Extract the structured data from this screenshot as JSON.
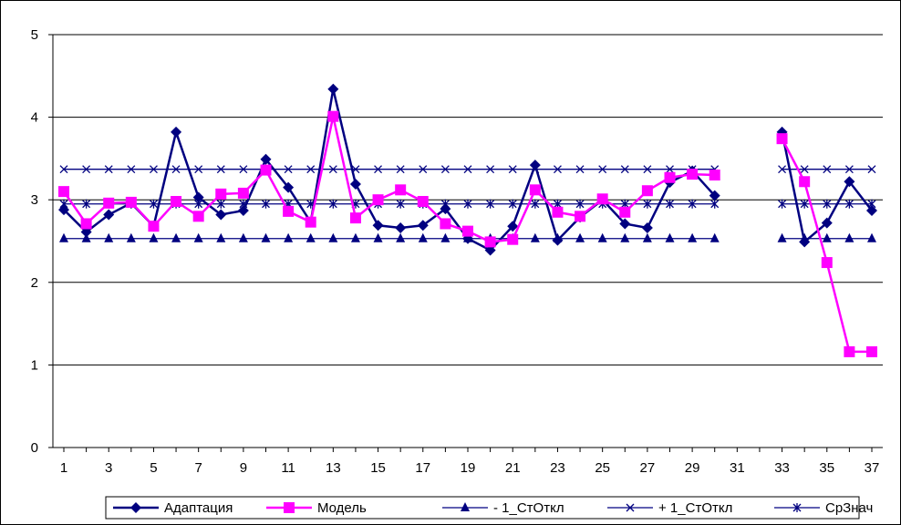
{
  "chart_data": {
    "type": "line",
    "title": "",
    "xlabel": "",
    "ylabel": "",
    "ylim": [
      0,
      5
    ],
    "yticks": [
      "0",
      "1",
      "2",
      "3",
      "4",
      "5"
    ],
    "xlim": [
      1,
      37
    ],
    "xticks": [
      "1",
      "3",
      "5",
      "7",
      "9",
      "11",
      "13",
      "15",
      "17",
      "19",
      "21",
      "23",
      "25",
      "27",
      "29",
      "31",
      "33",
      "35",
      "37"
    ],
    "grid": "horizontal",
    "legend_position": "bottom",
    "x": [
      1,
      2,
      3,
      4,
      5,
      6,
      7,
      8,
      9,
      10,
      11,
      12,
      13,
      14,
      15,
      16,
      17,
      18,
      19,
      20,
      21,
      22,
      23,
      24,
      25,
      26,
      27,
      28,
      29,
      30,
      31,
      32,
      33,
      34,
      35,
      36,
      37
    ],
    "series": [
      {
        "name": "Адаптация",
        "color": "#000080",
        "marker": "diamond",
        "values": [
          2.88,
          2.61,
          2.82,
          2.96,
          2.68,
          3.82,
          3.03,
          2.82,
          2.87,
          3.49,
          3.15,
          2.73,
          4.34,
          3.19,
          2.69,
          2.66,
          2.69,
          2.89,
          2.53,
          2.39,
          2.68,
          3.42,
          2.51,
          2.79,
          3.0,
          2.71,
          2.66,
          3.21,
          3.35,
          3.05,
          null,
          null,
          3.82,
          2.49,
          2.72,
          3.22,
          2.87
        ]
      },
      {
        "name": "Модель",
        "color": "#ff00ff",
        "marker": "square",
        "values": [
          3.1,
          2.71,
          2.96,
          2.97,
          2.68,
          2.98,
          2.8,
          3.07,
          3.08,
          3.36,
          2.86,
          2.73,
          4.01,
          2.78,
          3.0,
          3.12,
          2.98,
          2.71,
          2.62,
          2.49,
          2.52,
          3.12,
          2.85,
          2.8,
          3.01,
          2.85,
          3.11,
          3.27,
          3.31,
          3.3,
          null,
          null,
          3.74,
          3.22,
          2.24,
          1.16,
          1.16
        ]
      },
      {
        "name": "- 1_СтОткл",
        "color": "#000080",
        "marker": "triangle",
        "values": [
          2.53,
          2.53,
          2.53,
          2.53,
          2.53,
          2.53,
          2.53,
          2.53,
          2.53,
          2.53,
          2.53,
          2.53,
          2.53,
          2.53,
          2.53,
          2.53,
          2.53,
          2.53,
          2.53,
          2.53,
          2.53,
          2.53,
          2.53,
          2.53,
          2.53,
          2.53,
          2.53,
          2.53,
          2.53,
          2.53,
          null,
          null,
          2.53,
          2.53,
          2.53,
          2.53,
          2.53
        ]
      },
      {
        "name": "+ 1_СтОткл",
        "color": "#000080",
        "marker": "x",
        "values": [
          3.37,
          3.37,
          3.37,
          3.37,
          3.37,
          3.37,
          3.37,
          3.37,
          3.37,
          3.37,
          3.37,
          3.37,
          3.37,
          3.37,
          3.37,
          3.37,
          3.37,
          3.37,
          3.37,
          3.37,
          3.37,
          3.37,
          3.37,
          3.37,
          3.37,
          3.37,
          3.37,
          3.37,
          3.37,
          3.37,
          null,
          null,
          3.37,
          3.37,
          3.37,
          3.37,
          3.37
        ]
      },
      {
        "name": "СрЗнач",
        "color": "#000080",
        "marker": "star",
        "values": [
          2.95,
          2.95,
          2.95,
          2.95,
          2.95,
          2.95,
          2.95,
          2.95,
          2.95,
          2.95,
          2.95,
          2.95,
          2.95,
          2.95,
          2.95,
          2.95,
          2.95,
          2.95,
          2.95,
          2.95,
          2.95,
          2.95,
          2.95,
          2.95,
          2.95,
          2.95,
          2.95,
          2.95,
          2.95,
          2.95,
          null,
          null,
          2.95,
          2.95,
          2.95,
          2.95,
          2.95
        ]
      }
    ]
  }
}
